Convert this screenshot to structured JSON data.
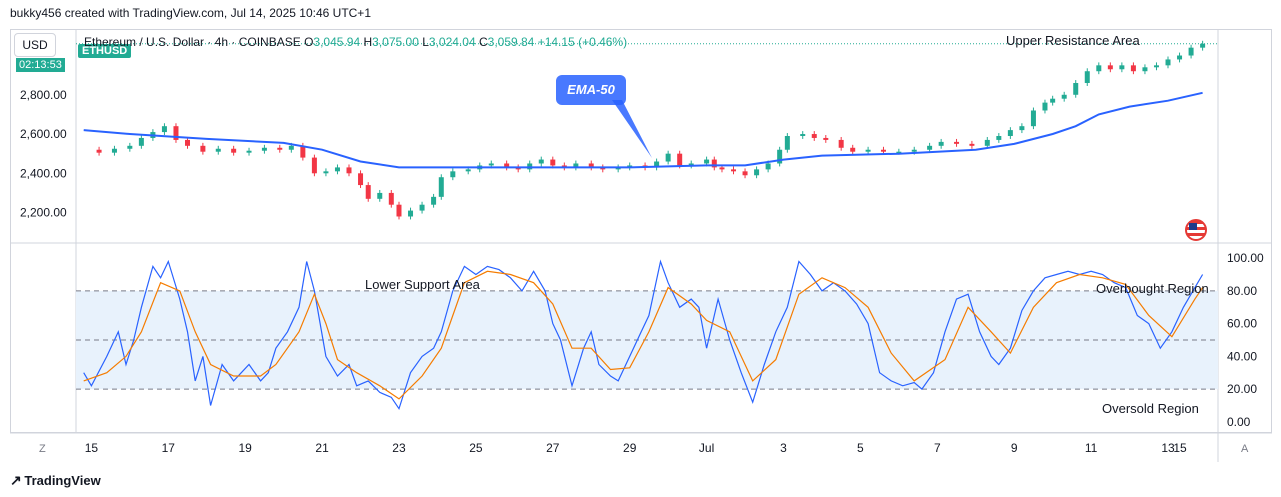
{
  "header": {
    "note": "bukky456 created with TradingView.com, Jul 14, 2025 10:46 UTC+1"
  },
  "toolbar": {
    "currency_label": "USD",
    "symbol_badge": "ETHUSD",
    "countdown": "02:13:53",
    "auto_label": "A",
    "zoom_label": "Z"
  },
  "legend": {
    "title": "Ethereum / U.S. Dollar · 4h · COINBASE",
    "open_label": "O",
    "open": "3,045.94",
    "high_label": "H",
    "high": "3,075.00",
    "low_label": "L",
    "low": "3,024.04",
    "close_label": "C",
    "close": "3,059.84",
    "change": "+14.15 (+0.46%)"
  },
  "annotations": {
    "upper_resistance": "Upper Resistance Area",
    "ema_callout": "EMA-50",
    "lower_support": "Lower Support Area",
    "overbought": "Overbought Region",
    "oversold": "Oversold Region"
  },
  "footer": {
    "brand": "TradingView"
  },
  "colors": {
    "up": "#22ab94",
    "down": "#f23645",
    "ema": "#2962ff",
    "stoch_k": "#2962ff",
    "stoch_d": "#f57c00",
    "band_fill": "#e8f2fc"
  },
  "chart_data": [
    {
      "type": "candlestick",
      "title": "Ethereum / U.S. Dollar · 4h · COINBASE",
      "x_ticks": [
        "15",
        "17",
        "19",
        "21",
        "23",
        "25",
        "27",
        "29",
        "Jul",
        "3",
        "5",
        "7",
        "9",
        "11",
        "13",
        "15"
      ],
      "y_ticks": [
        "2,800.00",
        "2,600.00",
        "2,400.00",
        "2,200.00"
      ],
      "ylim": [
        2050,
        3130
      ],
      "close_path": [
        [
          14.8,
          2520
        ],
        [
          15.2,
          2505
        ],
        [
          15.6,
          2525
        ],
        [
          16.0,
          2540
        ],
        [
          16.3,
          2580
        ],
        [
          16.6,
          2610
        ],
        [
          16.9,
          2640
        ],
        [
          17.2,
          2570
        ],
        [
          17.5,
          2540
        ],
        [
          17.9,
          2510
        ],
        [
          18.3,
          2525
        ],
        [
          18.7,
          2505
        ],
        [
          19.1,
          2515
        ],
        [
          19.5,
          2530
        ],
        [
          19.9,
          2520
        ],
        [
          20.2,
          2540
        ],
        [
          20.5,
          2480
        ],
        [
          20.8,
          2400
        ],
        [
          21.1,
          2410
        ],
        [
          21.4,
          2430
        ],
        [
          21.7,
          2400
        ],
        [
          22.0,
          2340
        ],
        [
          22.2,
          2270
        ],
        [
          22.5,
          2300
        ],
        [
          22.8,
          2240
        ],
        [
          23.0,
          2180
        ],
        [
          23.3,
          2210
        ],
        [
          23.6,
          2240
        ],
        [
          23.9,
          2280
        ],
        [
          24.1,
          2380
        ],
        [
          24.4,
          2410
        ],
        [
          24.8,
          2420
        ],
        [
          25.1,
          2440
        ],
        [
          25.4,
          2450
        ],
        [
          25.8,
          2430
        ],
        [
          26.1,
          2420
        ],
        [
          26.4,
          2450
        ],
        [
          26.7,
          2470
        ],
        [
          27.0,
          2440
        ],
        [
          27.3,
          2430
        ],
        [
          27.6,
          2450
        ],
        [
          28.0,
          2430
        ],
        [
          28.3,
          2420
        ],
        [
          28.7,
          2430
        ],
        [
          29.0,
          2440
        ],
        [
          29.4,
          2430
        ],
        [
          29.7,
          2460
        ],
        [
          30.0,
          2500
        ],
        [
          30.3,
          2440
        ],
        [
          30.6,
          2450
        ],
        [
          31.0,
          2470
        ],
        [
          31.2,
          2430
        ],
        [
          31.4,
          2420
        ],
        [
          31.7,
          2410
        ],
        [
          32.0,
          2390
        ],
        [
          32.3,
          2420
        ],
        [
          32.6,
          2450
        ],
        [
          32.9,
          2520
        ],
        [
          33.1,
          2590
        ],
        [
          33.5,
          2600
        ],
        [
          33.8,
          2580
        ],
        [
          34.1,
          2570
        ],
        [
          34.5,
          2530
        ],
        [
          34.8,
          2510
        ],
        [
          35.2,
          2520
        ],
        [
          35.6,
          2510
        ],
        [
          36.0,
          2510
        ],
        [
          36.4,
          2520
        ],
        [
          36.8,
          2540
        ],
        [
          37.1,
          2560
        ],
        [
          37.5,
          2550
        ],
        [
          37.9,
          2540
        ],
        [
          38.3,
          2570
        ],
        [
          38.6,
          2590
        ],
        [
          38.9,
          2620
        ],
        [
          39.2,
          2640
        ],
        [
          39.5,
          2720
        ],
        [
          39.8,
          2760
        ],
        [
          40.0,
          2780
        ],
        [
          40.3,
          2800
        ],
        [
          40.6,
          2860
        ],
        [
          40.9,
          2920
        ],
        [
          41.2,
          2950
        ],
        [
          41.5,
          2930
        ],
        [
          41.8,
          2950
        ],
        [
          42.1,
          2920
        ],
        [
          42.4,
          2940
        ],
        [
          42.7,
          2950
        ],
        [
          43.0,
          2980
        ],
        [
          43.3,
          3000
        ],
        [
          43.6,
          3040
        ],
        [
          43.9,
          3060
        ]
      ],
      "ema_50": [
        [
          14.8,
          2620
        ],
        [
          16.0,
          2600
        ],
        [
          18.0,
          2575
        ],
        [
          20.0,
          2555
        ],
        [
          21.0,
          2520
        ],
        [
          22.0,
          2460
        ],
        [
          23.0,
          2430
        ],
        [
          25.0,
          2430
        ],
        [
          27.0,
          2430
        ],
        [
          29.0,
          2430
        ],
        [
          31.0,
          2440
        ],
        [
          32.0,
          2440
        ],
        [
          33.0,
          2470
        ],
        [
          34.0,
          2490
        ],
        [
          36.0,
          2500
        ],
        [
          38.0,
          2520
        ],
        [
          39.0,
          2550
        ],
        [
          40.0,
          2600
        ],
        [
          40.6,
          2640
        ],
        [
          41.2,
          2700
        ],
        [
          42.0,
          2740
        ],
        [
          43.0,
          2770
        ],
        [
          43.9,
          2810
        ]
      ]
    },
    {
      "type": "line",
      "title": "",
      "y_ticks": [
        "100.00",
        "80.00",
        "60.00",
        "40.00",
        "20.00",
        "0.00"
      ],
      "ylim": [
        -5,
        105
      ],
      "bands": [
        20,
        50,
        80
      ],
      "series": [
        {
          "values": [
            [
              14.8,
              30
            ],
            [
              15.0,
              22
            ],
            [
              15.4,
              40
            ],
            [
              15.7,
              55
            ],
            [
              15.9,
              35
            ],
            [
              16.1,
              50
            ],
            [
              16.3,
              70
            ],
            [
              16.6,
              95
            ],
            [
              16.8,
              88
            ],
            [
              17.0,
              98
            ],
            [
              17.3,
              75
            ],
            [
              17.5,
              55
            ],
            [
              17.7,
              25
            ],
            [
              17.9,
              40
            ],
            [
              18.1,
              10
            ],
            [
              18.4,
              35
            ],
            [
              18.7,
              25
            ],
            [
              18.9,
              30
            ],
            [
              19.1,
              35
            ],
            [
              19.4,
              25
            ],
            [
              19.6,
              30
            ],
            [
              19.8,
              45
            ],
            [
              20.1,
              55
            ],
            [
              20.4,
              70
            ],
            [
              20.6,
              98
            ],
            [
              20.8,
              80
            ],
            [
              21.1,
              40
            ],
            [
              21.4,
              28
            ],
            [
              21.7,
              35
            ],
            [
              21.9,
              22
            ],
            [
              22.2,
              25
            ],
            [
              22.5,
              18
            ],
            [
              22.8,
              15
            ],
            [
              23.0,
              8
            ],
            [
              23.3,
              30
            ],
            [
              23.6,
              40
            ],
            [
              23.9,
              45
            ],
            [
              24.1,
              55
            ],
            [
              24.4,
              80
            ],
            [
              24.7,
              95
            ],
            [
              25.0,
              90
            ],
            [
              25.3,
              95
            ],
            [
              25.6,
              93
            ],
            [
              25.9,
              88
            ],
            [
              26.2,
              80
            ],
            [
              26.5,
              92
            ],
            [
              26.8,
              80
            ],
            [
              27.0,
              60
            ],
            [
              27.2,
              50
            ],
            [
              27.5,
              22
            ],
            [
              27.8,
              45
            ],
            [
              28.0,
              55
            ],
            [
              28.2,
              35
            ],
            [
              28.5,
              28
            ],
            [
              28.7,
              25
            ],
            [
              29.0,
              40
            ],
            [
              29.3,
              55
            ],
            [
              29.5,
              65
            ],
            [
              29.8,
              98
            ],
            [
              30.0,
              85
            ],
            [
              30.3,
              70
            ],
            [
              30.6,
              75
            ],
            [
              30.8,
              70
            ],
            [
              31.0,
              45
            ],
            [
              31.3,
              75
            ],
            [
              31.6,
              50
            ],
            [
              31.9,
              30
            ],
            [
              32.2,
              12
            ],
            [
              32.5,
              35
            ],
            [
              32.8,
              55
            ],
            [
              33.1,
              70
            ],
            [
              33.4,
              98
            ],
            [
              33.7,
              90
            ],
            [
              34.0,
              80
            ],
            [
              34.3,
              85
            ],
            [
              34.6,
              80
            ],
            [
              34.9,
              72
            ],
            [
              35.2,
              60
            ],
            [
              35.5,
              30
            ],
            [
              35.8,
              25
            ],
            [
              36.1,
              22
            ],
            [
              36.4,
              24
            ],
            [
              36.6,
              20
            ],
            [
              36.9,
              30
            ],
            [
              37.2,
              55
            ],
            [
              37.5,
              75
            ],
            [
              37.8,
              78
            ],
            [
              38.1,
              55
            ],
            [
              38.4,
              40
            ],
            [
              38.6,
              35
            ],
            [
              38.9,
              45
            ],
            [
              39.2,
              68
            ],
            [
              39.5,
              80
            ],
            [
              39.8,
              88
            ],
            [
              40.1,
              90
            ],
            [
              40.4,
              92
            ],
            [
              40.7,
              90
            ],
            [
              41.0,
              92
            ],
            [
              41.3,
              90
            ],
            [
              41.6,
              85
            ],
            [
              41.9,
              82
            ],
            [
              42.2,
              65
            ],
            [
              42.5,
              60
            ],
            [
              42.8,
              45
            ],
            [
              43.1,
              55
            ],
            [
              43.4,
              70
            ],
            [
              43.7,
              82
            ],
            [
              43.9,
              90
            ]
          ]
        },
        {
          "values": [
            [
              14.8,
              25
            ],
            [
              15.4,
              30
            ],
            [
              15.9,
              40
            ],
            [
              16.3,
              55
            ],
            [
              16.8,
              85
            ],
            [
              17.3,
              80
            ],
            [
              17.7,
              55
            ],
            [
              18.1,
              35
            ],
            [
              18.7,
              28
            ],
            [
              19.4,
              28
            ],
            [
              19.8,
              35
            ],
            [
              20.4,
              55
            ],
            [
              20.8,
              78
            ],
            [
              21.1,
              60
            ],
            [
              21.4,
              38
            ],
            [
              21.9,
              30
            ],
            [
              22.5,
              22
            ],
            [
              23.0,
              14
            ],
            [
              23.6,
              28
            ],
            [
              24.1,
              45
            ],
            [
              24.4,
              65
            ],
            [
              24.7,
              85
            ],
            [
              25.3,
              92
            ],
            [
              25.9,
              90
            ],
            [
              26.5,
              85
            ],
            [
              27.0,
              72
            ],
            [
              27.5,
              45
            ],
            [
              28.0,
              45
            ],
            [
              28.5,
              32
            ],
            [
              29.0,
              33
            ],
            [
              29.5,
              55
            ],
            [
              30.0,
              82
            ],
            [
              30.6,
              72
            ],
            [
              31.0,
              62
            ],
            [
              31.6,
              55
            ],
            [
              32.2,
              25
            ],
            [
              32.8,
              38
            ],
            [
              33.4,
              78
            ],
            [
              34.0,
              88
            ],
            [
              34.6,
              82
            ],
            [
              35.2,
              70
            ],
            [
              35.8,
              42
            ],
            [
              36.4,
              25
            ],
            [
              37.2,
              38
            ],
            [
              37.8,
              70
            ],
            [
              38.4,
              55
            ],
            [
              38.9,
              42
            ],
            [
              39.5,
              70
            ],
            [
              40.1,
              85
            ],
            [
              40.7,
              90
            ],
            [
              41.3,
              88
            ],
            [
              41.9,
              84
            ],
            [
              42.5,
              65
            ],
            [
              43.1,
              52
            ],
            [
              43.7,
              75
            ],
            [
              43.9,
              82
            ]
          ]
        }
      ]
    }
  ]
}
